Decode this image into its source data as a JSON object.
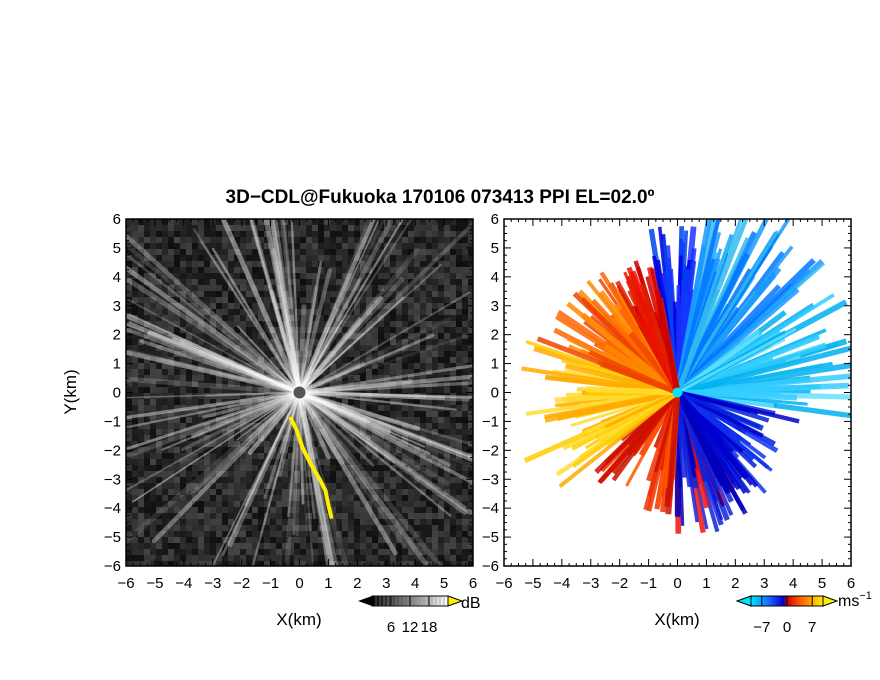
{
  "chart_data": [
    {
      "type": "heatmap",
      "panel": "reflectivity",
      "title": "3D−CDL@Fukuoka 170106 073413 PPI EL=02.0º",
      "xlabel": "X(km)",
      "ylabel": "Y(km)",
      "xlim": [
        -6,
        6
      ],
      "ylim": [
        -6,
        6
      ],
      "x_ticks": [
        "−6",
        "−5",
        "−4",
        "−3",
        "−2",
        "−1",
        "0",
        "1",
        "2",
        "3",
        "4",
        "5",
        "6"
      ],
      "y_ticks": [
        "−6",
        "−5",
        "−4",
        "−3",
        "−2",
        "−1",
        "0",
        "1",
        "2",
        "3",
        "4",
        "5",
        "6"
      ],
      "colormap": "grayscale",
      "highlight_color": "#ffee00",
      "highlight_path_km": [
        [
          -0.3,
          -0.9
        ],
        [
          -0.1,
          -1.3
        ],
        [
          0.1,
          -1.9
        ],
        [
          0.4,
          -2.5
        ],
        [
          0.7,
          -3.0
        ],
        [
          0.9,
          -3.4
        ],
        [
          1.0,
          -3.9
        ],
        [
          1.1,
          -4.3
        ]
      ],
      "colorbar": {
        "unit": "dB",
        "tick_labels": [
          "6",
          "12",
          "18"
        ],
        "range": [
          0,
          24
        ]
      }
    },
    {
      "type": "heatmap",
      "panel": "doppler_velocity",
      "xlabel": "X(km)",
      "xlim": [
        -6,
        6
      ],
      "ylim": [
        -6,
        6
      ],
      "x_ticks": [
        "−6",
        "−5",
        "−4",
        "−3",
        "−2",
        "−1",
        "0",
        "1",
        "2",
        "3",
        "4",
        "5",
        "6"
      ],
      "y_ticks": [
        "−6",
        "−5",
        "−4",
        "−3",
        "−2",
        "−1",
        "0",
        "1",
        "2",
        "3",
        "4",
        "5",
        "6"
      ],
      "colormap": "diverging cyan-blue-red-yellow",
      "colorbar": {
        "unit": "ms",
        "unit_exponent": "−1",
        "tick_labels": [
          "−7",
          "0",
          "7"
        ],
        "range": [
          -10,
          10
        ]
      }
    }
  ]
}
